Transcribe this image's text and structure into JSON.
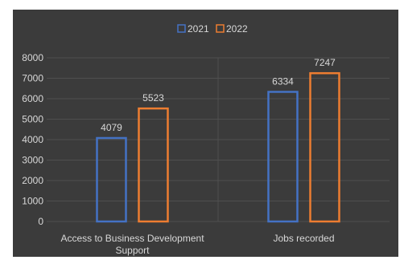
{
  "chart_data": {
    "type": "bar",
    "categories": [
      "Access to Business Development Support",
      "Jobs recorded"
    ],
    "category_label_lines": [
      [
        "Access to Business Development",
        "Support"
      ],
      [
        "Jobs recorded"
      ]
    ],
    "series": [
      {
        "name": "2021",
        "values": [
          4079,
          6334
        ],
        "color": "#4472c4"
      },
      {
        "name": "2022",
        "values": [
          5523,
          7247
        ],
        "color": "#ed7d31"
      }
    ],
    "ylim": [
      0,
      8000
    ],
    "yticks": [
      "0",
      "1000",
      "2000",
      "3000",
      "4000",
      "5000",
      "6000",
      "7000",
      "8000"
    ],
    "legend_position": "top-center",
    "grid": true,
    "background": "#3b3b3b",
    "grid_color": "#4f4f4f"
  }
}
